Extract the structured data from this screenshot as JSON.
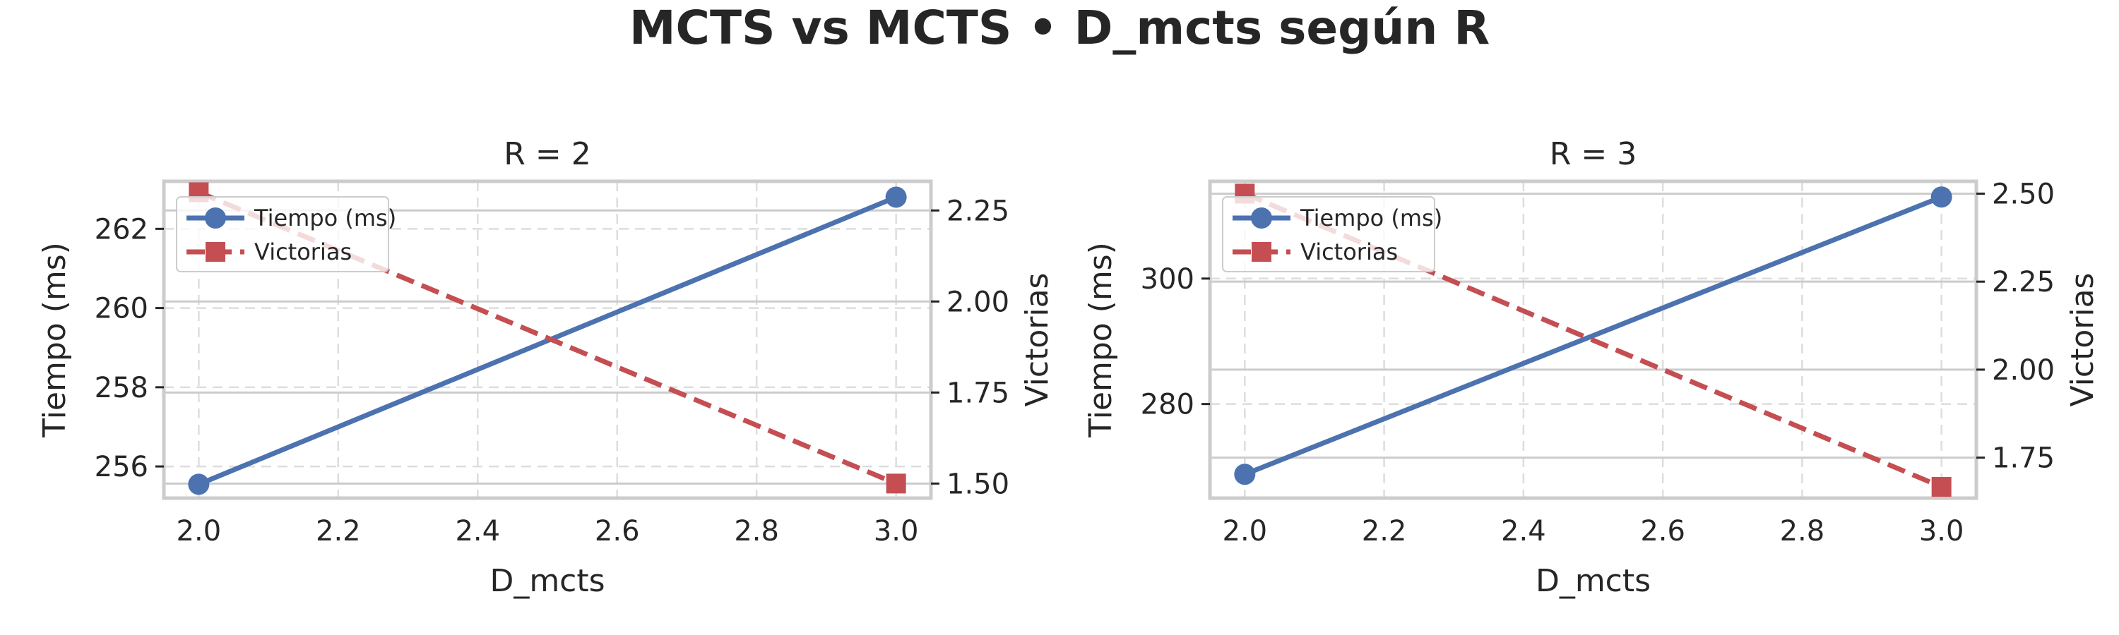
{
  "suptitle": "MCTS vs MCTS • D_mcts según R",
  "colors": {
    "time": "#4C72B0",
    "wins": "#C44E52",
    "axes_frame": "#CCCCCC",
    "grid_left": "#DDDDDD",
    "grid_right": "#CCCCCC"
  },
  "chart_data": [
    {
      "type": "line",
      "title": "R = 2",
      "xlabel": "D_mcts",
      "ylabel": "Tiempo (ms)",
      "ylabel_right": "Victorias",
      "x": [
        2.0,
        3.0
      ],
      "xlim": [
        1.95,
        3.05
      ],
      "xticks": [
        "2.0",
        "2.2",
        "2.4",
        "2.6",
        "2.8",
        "3.0"
      ],
      "ylim": [
        255.2,
        263.2
      ],
      "yticks": [
        "256",
        "258",
        "260",
        "262"
      ],
      "ylim_right": [
        1.46,
        2.33
      ],
      "yticks_right": [
        "1.50",
        "1.75",
        "2.00",
        "2.25"
      ],
      "grid": true,
      "legend_position": "top-left",
      "series": [
        {
          "name": "Tiempo (ms)",
          "axis": "left",
          "marker": "circle",
          "style": "solid",
          "values": [
            255.55,
            262.8
          ]
        },
        {
          "name": "Victorias",
          "axis": "right",
          "marker": "square",
          "style": "dashed",
          "values": [
            2.3,
            1.5
          ]
        }
      ]
    },
    {
      "type": "line",
      "title": "R = 3",
      "xlabel": "D_mcts",
      "ylabel": "Tiempo (ms)",
      "ylabel_right": "Victorias",
      "x": [
        2.0,
        3.0
      ],
      "xlim": [
        1.95,
        3.05
      ],
      "xticks": [
        "2.0",
        "2.2",
        "2.4",
        "2.6",
        "2.8",
        "3.0"
      ],
      "ylim": [
        265.0,
        315.5
      ],
      "yticks": [
        "280",
        "300"
      ],
      "ylim_right": [
        1.635,
        2.535
      ],
      "yticks_right": [
        "1.75",
        "2.00",
        "2.25",
        "2.50"
      ],
      "grid": true,
      "legend_position": "top-left",
      "series": [
        {
          "name": "Tiempo (ms)",
          "axis": "left",
          "marker": "circle",
          "style": "solid",
          "values": [
            268.8,
            313.0
          ]
        },
        {
          "name": "Victorias",
          "axis": "right",
          "marker": "square",
          "style": "dashed",
          "values": [
            2.5,
            1.667
          ]
        }
      ]
    }
  ]
}
